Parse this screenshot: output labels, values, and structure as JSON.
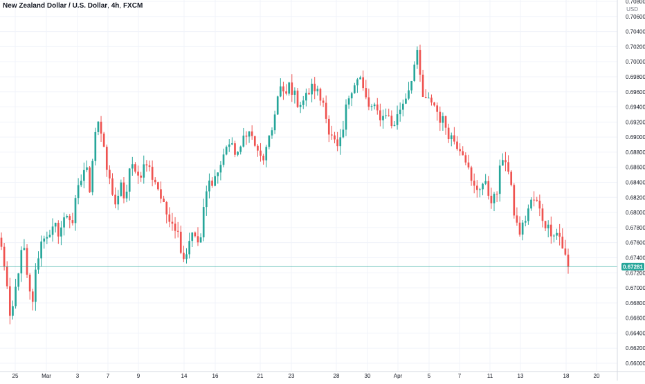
{
  "title": {
    "symbol_name": "New Zealand Dollar / U.S. Dollar",
    "interval": "4h",
    "exchange": "FXCM"
  },
  "price_axis": {
    "currency": "USD",
    "ticks": [
      "0.70800",
      "0.70600",
      "0.70400",
      "0.70200",
      "0.70000",
      "0.69800",
      "0.69600",
      "0.69400",
      "0.69200",
      "0.69000",
      "0.68800",
      "0.68600",
      "0.68400",
      "0.68200",
      "0.68000",
      "0.67800",
      "0.67600",
      "0.67400",
      "0.67200",
      "0.67000",
      "0.66800",
      "0.66600",
      "0.66400",
      "0.66200",
      "0.66000"
    ]
  },
  "time_axis": {
    "ticks": [
      "25",
      "Mar",
      "3",
      "7",
      "9",
      "14",
      "16",
      "21",
      "23",
      "28",
      "30",
      "Apr",
      "5",
      "7",
      "11",
      "13",
      "18",
      "20"
    ]
  },
  "last_price": {
    "label": "0.67281",
    "color": "#26a69a"
  },
  "colors": {
    "up": "#26a69a",
    "down": "#ef5350",
    "grid": "#f0f3fa",
    "axis_text": "#131722"
  },
  "chart_data": {
    "type": "candlestick",
    "title": "New Zealand Dollar / U.S. Dollar, 4h, FXCM",
    "ylim": [
      0.6595,
      0.7085
    ],
    "path": [
      0.6752,
      0.672,
      0.665,
      0.669,
      0.673,
      0.6758,
      0.67,
      0.668,
      0.6735,
      0.676,
      0.6775,
      0.6765,
      0.6783,
      0.6773,
      0.6788,
      0.68,
      0.6785,
      0.6823,
      0.6843,
      0.6865,
      0.683,
      0.6905,
      0.6925,
      0.6885,
      0.685,
      0.683,
      0.6805,
      0.6835,
      0.6815,
      0.6855,
      0.6865,
      0.6845,
      0.686,
      0.6865,
      0.6848,
      0.684,
      0.682,
      0.68,
      0.6795,
      0.6785,
      0.677,
      0.674,
      0.675,
      0.678,
      0.6758,
      0.6765,
      0.682,
      0.684,
      0.6845,
      0.6855,
      0.687,
      0.6895,
      0.6885,
      0.688,
      0.688,
      0.691,
      0.6905,
      0.6895,
      0.6875,
      0.687,
      0.6885,
      0.6905,
      0.6945,
      0.6965,
      0.695,
      0.697,
      0.6958,
      0.6945,
      0.6948,
      0.6955,
      0.6965,
      0.6965,
      0.695,
      0.6945,
      0.6905,
      0.6895,
      0.6882,
      0.69,
      0.6945,
      0.6965,
      0.6975,
      0.6978,
      0.6955,
      0.694,
      0.6938,
      0.6932,
      0.6925,
      0.6935,
      0.6915,
      0.692,
      0.6938,
      0.695,
      0.6965,
      0.699,
      0.701,
      0.6955,
      0.6945,
      0.695,
      0.694,
      0.6925,
      0.692,
      0.6905,
      0.6898,
      0.689,
      0.6885,
      0.687,
      0.684,
      0.683,
      0.6835,
      0.684,
      0.6825,
      0.6815,
      0.6828,
      0.6875,
      0.687,
      0.6835,
      0.679,
      0.6773,
      0.6785,
      0.6805,
      0.6818,
      0.6812,
      0.6795,
      0.6783,
      0.6776,
      0.6775,
      0.677,
      0.6748,
      0.6728
    ],
    "last_price": 0.67281
  }
}
